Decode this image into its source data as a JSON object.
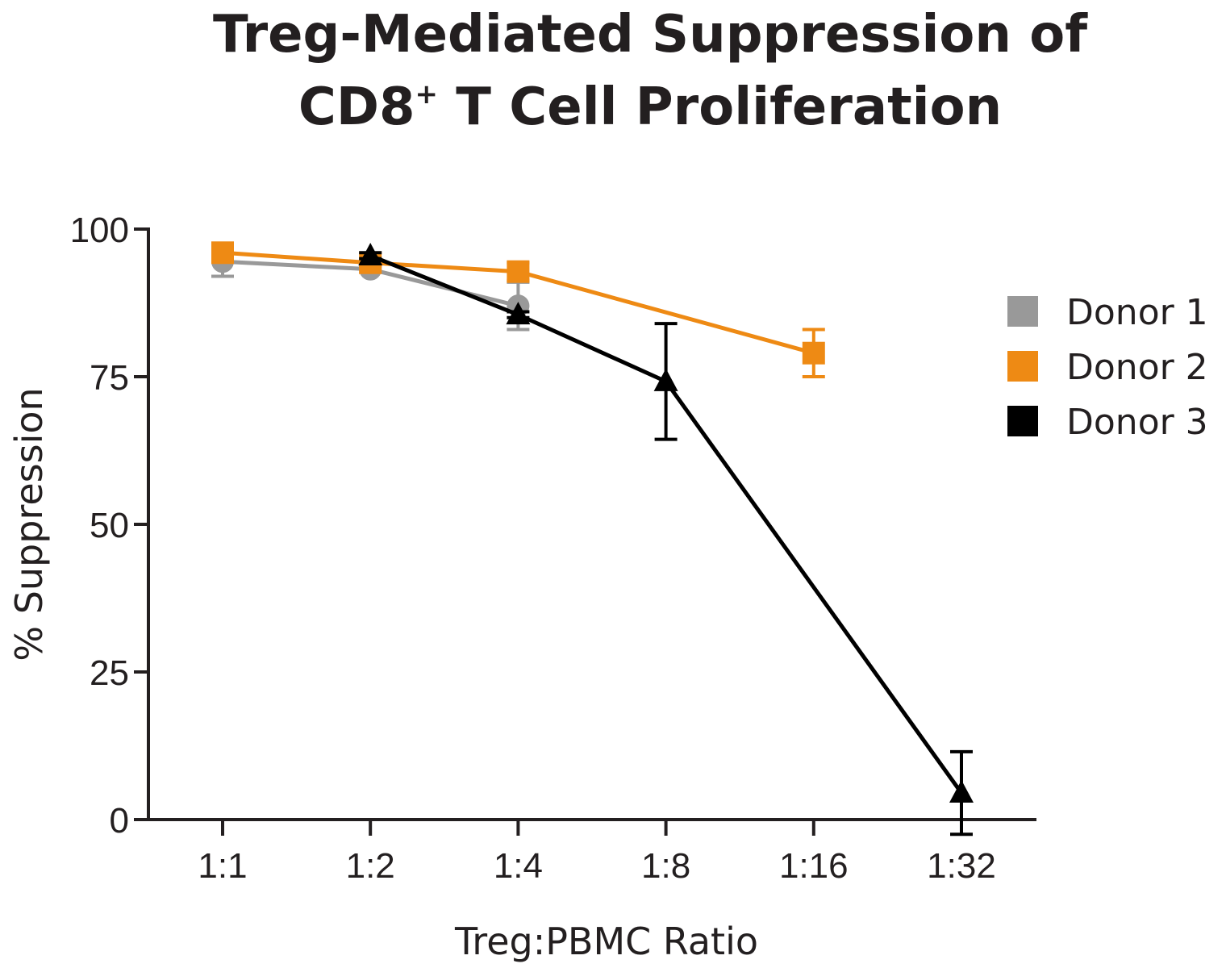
{
  "chart_data": {
    "type": "line",
    "title_line1": "Treg-Mediated Suppression of",
    "title_line2_main": "CD8",
    "title_line2_sup": "+",
    "title_line2_rest": " T Cell Proliferation",
    "xlabel": "Treg:PBMC Ratio",
    "ylabel": "% Suppression",
    "categories": [
      "1:1",
      "1:2",
      "1:4",
      "1:8",
      "1:16",
      "1:32"
    ],
    "ylim": [
      0,
      100
    ],
    "yticks": [
      "0",
      "25",
      "50",
      "75",
      "100"
    ],
    "grid": false,
    "legend_position": "right",
    "series": [
      {
        "name": "Donor 1",
        "color": "#999999",
        "marker": "circle",
        "values": [
          94.5,
          93.2,
          87,
          null,
          null,
          null
        ],
        "errors": [
          2.5,
          0.5,
          4,
          null,
          null,
          null
        ]
      },
      {
        "name": "Donor 2",
        "color": "#ee8a14",
        "marker": "square",
        "values": [
          96,
          94.3,
          92.8,
          null,
          79,
          null
        ],
        "errors": [
          1,
          0.5,
          1.5,
          null,
          4,
          null
        ]
      },
      {
        "name": "Donor 3",
        "color": "#000000",
        "marker": "triangle",
        "values": [
          null,
          95.5,
          85.5,
          74.2,
          null,
          4.5
        ],
        "errors": [
          null,
          0.5,
          0.5,
          9.8,
          null,
          7
        ]
      }
    ]
  }
}
